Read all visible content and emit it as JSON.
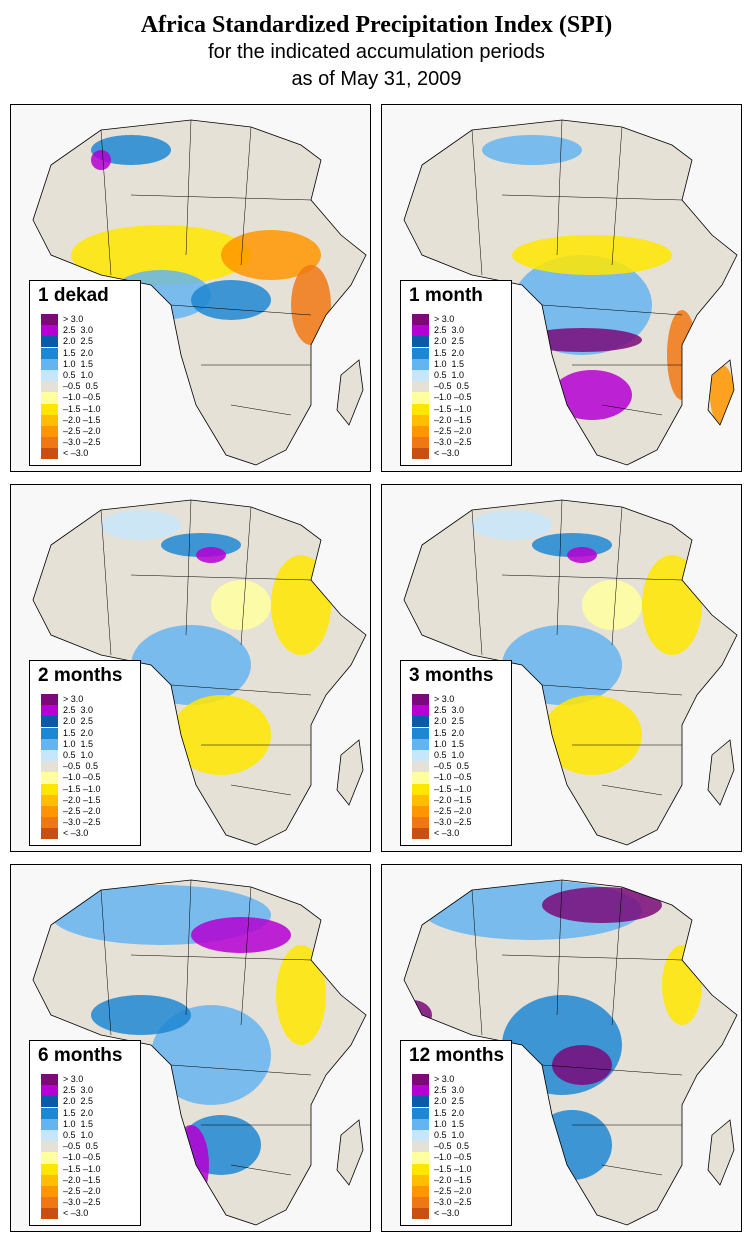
{
  "title": "Africa Standardized Precipitation Index (SPI)",
  "subtitle1": "for the indicated accumulation periods",
  "subtitle2": "as of May 31, 2009",
  "panels": [
    {
      "label": "1 dekad",
      "pattern": "dry_sahel"
    },
    {
      "label": "1 month",
      "pattern": "mixed_wet_center"
    },
    {
      "label": "2 months",
      "pattern": "mixed_east_dry"
    },
    {
      "label": "3 months",
      "pattern": "mixed_east_dry"
    },
    {
      "label": "6 months",
      "pattern": "wet_north_east_dry"
    },
    {
      "label": "12 months",
      "pattern": "very_wet"
    }
  ],
  "legend": [
    {
      "label": "> 3.0",
      "color": "#7a0a7a"
    },
    {
      "label": "2.5  3.0",
      "color": "#b400d2"
    },
    {
      "label": "2.0  2.5",
      "color": "#0a5aa6"
    },
    {
      "label": "1.5  2.0",
      "color": "#1e87d2"
    },
    {
      "label": "1.0  1.5",
      "color": "#64b4f0"
    },
    {
      "label": "0.5  1.0",
      "color": "#c8e6fa"
    },
    {
      "label": "–0.5  0.5",
      "color": "#e6e1d7"
    },
    {
      "label": "–1.0 –0.5",
      "color": "#ffffa0"
    },
    {
      "label": "–1.5 –1.0",
      "color": "#ffe600"
    },
    {
      "label": "–2.0 –1.5",
      "color": "#ffbe00"
    },
    {
      "label": "–2.5 –2.0",
      "color": "#ff9600"
    },
    {
      "label": "–3.0 –2.5",
      "color": "#f07814"
    },
    {
      "label": "< –3.0",
      "color": "#c85014"
    }
  ]
}
